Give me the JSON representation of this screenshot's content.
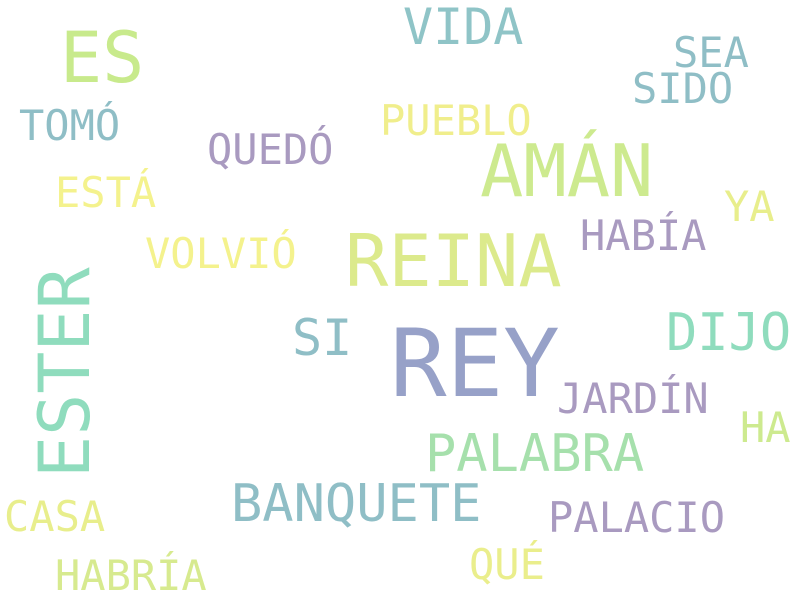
{
  "words": [
    {
      "key": "rey",
      "text": "REY",
      "color": "#97a1c8"
    },
    {
      "key": "reina",
      "text": "REINA",
      "color": "#dcea8c"
    },
    {
      "key": "aman",
      "text": "AMÁN",
      "color": "#cdea8f"
    },
    {
      "key": "ester",
      "text": "ESTER",
      "color": "#8fdcbd"
    },
    {
      "key": "es",
      "text": "ES",
      "color": "#c8ea8c"
    },
    {
      "key": "vida",
      "text": "VIDA",
      "color": "#8fc4c7"
    },
    {
      "key": "dijo",
      "text": "DIJO",
      "color": "#8fdcbd"
    },
    {
      "key": "palabra",
      "text": "PALABRA",
      "color": "#a6e0ac"
    },
    {
      "key": "banquete",
      "text": "BANQUETE",
      "color": "#8fbec6"
    },
    {
      "key": "palacio",
      "text": "PALACIO",
      "color": "#a99ac0"
    },
    {
      "key": "jardin",
      "text": "JARDÍN",
      "color": "#a99ac0"
    },
    {
      "key": "habia",
      "text": "HABÍA",
      "color": "#a99ac0"
    },
    {
      "key": "quedo",
      "text": "QUEDÓ",
      "color": "#a99ac0"
    },
    {
      "key": "pueblo",
      "text": "PUEBLO",
      "color": "#f0ee8c"
    },
    {
      "key": "volvio",
      "text": "VOLVIÓ",
      "color": "#f4f28d"
    },
    {
      "key": "esta",
      "text": "ESTÁ",
      "color": "#f4f28d"
    },
    {
      "key": "tomo",
      "text": "TOMÓ",
      "color": "#8fbec6"
    },
    {
      "key": "si",
      "text": "SI",
      "color": "#8fbec6"
    },
    {
      "key": "sea",
      "text": "SEA",
      "color": "#8fbec6"
    },
    {
      "key": "sido",
      "text": "SIDO",
      "color": "#8fbec6"
    },
    {
      "key": "ya",
      "text": "YA",
      "color": "#e8ee8c"
    },
    {
      "key": "ha",
      "text": "HA",
      "color": "#cdea8f"
    },
    {
      "key": "casa",
      "text": "CASA",
      "color": "#e8ee8c"
    },
    {
      "key": "habria",
      "text": "HABRÍA",
      "color": "#d7ea8f"
    },
    {
      "key": "que",
      "text": "QUÉ",
      "color": "#eaee8c"
    }
  ]
}
